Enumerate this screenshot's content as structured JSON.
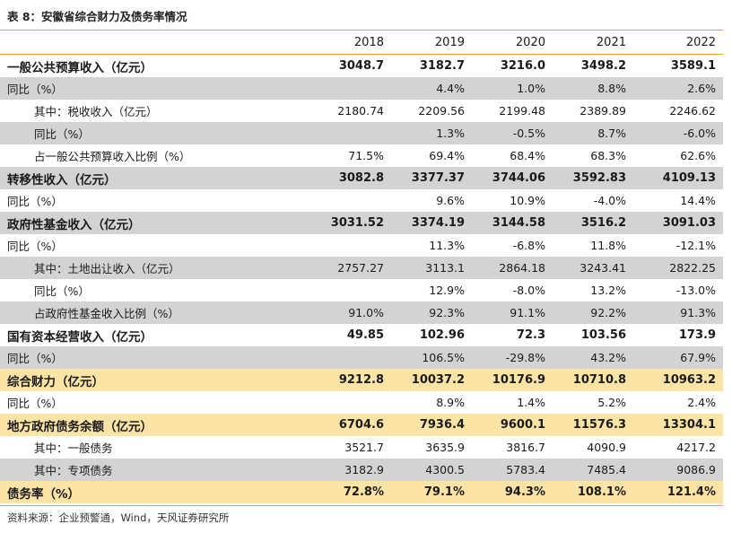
{
  "title": "表 8：安徽省综合财力及债务率情况",
  "header": [
    "2018",
    "2019",
    "2020",
    "2021",
    "2022"
  ],
  "rows": [
    {
      "label": "一般公共预算收入（亿元）",
      "values": [
        "3048.7",
        "3182.7",
        "3216.0",
        "3498.2",
        "3589.1"
      ],
      "bold": true,
      "indent": false,
      "bg": "white"
    },
    {
      "label": "同比（%）",
      "values": [
        "",
        "4.4%",
        "1.0%",
        "8.8%",
        "2.6%"
      ],
      "bold": false,
      "indent": false,
      "bg": "gray"
    },
    {
      "label": "其中：税收收入（亿元）",
      "values": [
        "2180.74",
        "2209.56",
        "2199.48",
        "2389.89",
        "2246.62"
      ],
      "bold": false,
      "indent": true,
      "bg": "white"
    },
    {
      "label": "同比（%）",
      "values": [
        "",
        "1.3%",
        "-0.5%",
        "8.7%",
        "-6.0%"
      ],
      "bold": false,
      "indent": true,
      "bg": "gray"
    },
    {
      "label": "占一般公共预算收入比例（%）",
      "values": [
        "71.5%",
        "69.4%",
        "68.4%",
        "68.3%",
        "62.6%"
      ],
      "bold": false,
      "indent": true,
      "bg": "white"
    },
    {
      "label": "转移性收入（亿元）",
      "values": [
        "3082.8",
        "3377.37",
        "3744.06",
        "3592.83",
        "4109.13"
      ],
      "bold": true,
      "indent": false,
      "bg": "gray"
    },
    {
      "label": "同比（%）",
      "values": [
        "",
        "9.6%",
        "10.9%",
        "-4.0%",
        "14.4%"
      ],
      "bold": false,
      "indent": false,
      "bg": "white"
    },
    {
      "label": "政府性基金收入（亿元）",
      "values": [
        "3031.52",
        "3374.19",
        "3144.58",
        "3516.2",
        "3091.03"
      ],
      "bold": true,
      "indent": false,
      "bg": "gray"
    },
    {
      "label": "同比（%）",
      "values": [
        "",
        "11.3%",
        "-6.8%",
        "11.8%",
        "-12.1%"
      ],
      "bold": false,
      "indent": false,
      "bg": "white"
    },
    {
      "label": "其中：土地出让收入（亿元）",
      "values": [
        "2757.27",
        "3113.1",
        "2864.18",
        "3243.41",
        "2822.25"
      ],
      "bold": false,
      "indent": true,
      "bg": "gray"
    },
    {
      "label": "同比（%）",
      "values": [
        "",
        "12.9%",
        "-8.0%",
        "13.2%",
        "-13.0%"
      ],
      "bold": false,
      "indent": true,
      "bg": "white"
    },
    {
      "label": "占政府性基金收入比例（%）",
      "values": [
        "91.0%",
        "92.3%",
        "91.1%",
        "92.2%",
        "91.3%"
      ],
      "bold": false,
      "indent": true,
      "bg": "gray"
    },
    {
      "label": "国有资本经营收入（亿元）",
      "values": [
        "49.85",
        "102.96",
        "72.3",
        "103.56",
        "173.9"
      ],
      "bold": true,
      "indent": false,
      "bg": "white"
    },
    {
      "label": "同比（%）",
      "values": [
        "",
        "106.5%",
        "-29.8%",
        "43.2%",
        "67.9%"
      ],
      "bold": false,
      "indent": false,
      "bg": "gray"
    },
    {
      "label": "综合财力（亿元）",
      "values": [
        "9212.8",
        "10037.2",
        "10176.9",
        "10710.8",
        "10963.2"
      ],
      "bold": true,
      "indent": false,
      "bg": "yellow"
    },
    {
      "label": "同比（%）",
      "values": [
        "",
        "8.9%",
        "1.4%",
        "5.2%",
        "2.4%"
      ],
      "bold": false,
      "indent": false,
      "bg": "white"
    },
    {
      "label": "地方政府债务余额（亿元）",
      "values": [
        "6704.6",
        "7936.4",
        "9600.1",
        "11576.3",
        "13304.1"
      ],
      "bold": true,
      "indent": false,
      "bg": "yellow"
    },
    {
      "label": "其中：一般债务",
      "values": [
        "3521.7",
        "3635.9",
        "3816.7",
        "4090.9",
        "4217.2"
      ],
      "bold": false,
      "indent": true,
      "bg": "white"
    },
    {
      "label": "其中：专项债务",
      "values": [
        "3182.9",
        "4300.5",
        "5783.4",
        "7485.4",
        "9086.9"
      ],
      "bold": false,
      "indent": true,
      "bg": "gray"
    },
    {
      "label": "债务率（%）",
      "values": [
        "72.8%",
        "79.1%",
        "94.3%",
        "108.1%",
        "121.4%"
      ],
      "bold": true,
      "indent": false,
      "bg": "yellow"
    }
  ],
  "source": "资料来源：企业预警通，Wind，天风证券研究所",
  "colors": {
    "rule": "#e8a43a",
    "gray_row": "#d3d3d3",
    "yellow_row": "#fbe4a6"
  }
}
